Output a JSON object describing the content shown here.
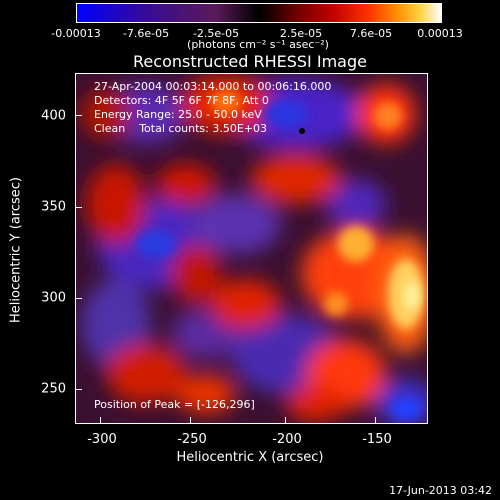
{
  "colorbar": {
    "ticks": [
      "-0.00013",
      "-7.6e-05",
      "-2.5e-05",
      "2.5e-05",
      "7.6e-05",
      "0.00013"
    ],
    "units": "(photons cm⁻² s⁻¹ asec⁻²)"
  },
  "plot": {
    "title": "Reconstructed RHESSI Image",
    "info_lines": [
      "27-Apr-2004 00:03:14.000 to 00:06:16.000",
      "Detectors: 4F 5F 6F 7F 8F, Att 0",
      "Energy Range: 25.0 - 50.0 keV",
      "Clean    Total counts: 3.50E+03"
    ],
    "peak_label": "Position of Peak = [-126,296]",
    "xlabel": "Heliocentric X (arcsec)",
    "ylabel": "Heliocentric Y (arcsec)",
    "xticks": [
      "-300",
      "-250",
      "-200",
      "-150"
    ],
    "yticks": [
      "400",
      "350",
      "300",
      "250"
    ],
    "colors": {
      "negative": "#3a10b0",
      "positive_hot": "#ff3000",
      "peak": "#ffff80"
    }
  },
  "timestamp": "17-Jun-2013 03:42"
}
